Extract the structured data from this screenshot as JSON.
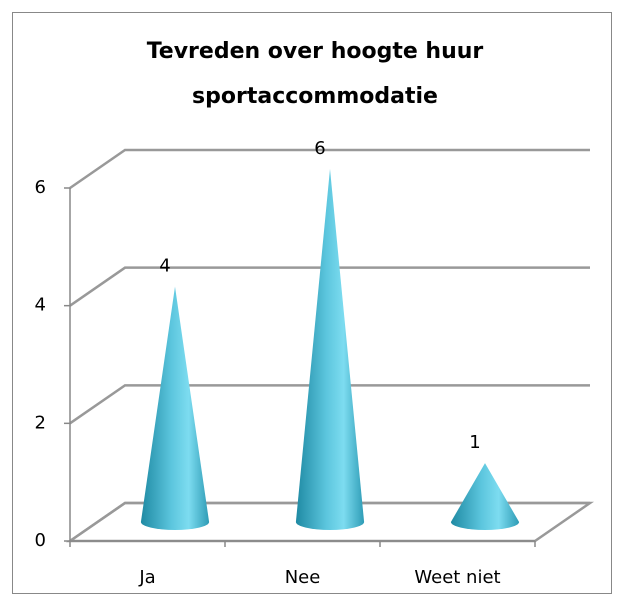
{
  "chart_data": {
    "type": "bar",
    "shape": "cone",
    "title": "Tevreden over hoogte huur sportaccommodatie",
    "categories": [
      "Ja",
      "Nee",
      "Weet niet"
    ],
    "values": [
      4,
      6,
      1
    ],
    "color": "#3aa7c0",
    "ylim": [
      0,
      6
    ],
    "yticks": [
      0,
      2,
      4,
      6
    ],
    "grid": true
  }
}
